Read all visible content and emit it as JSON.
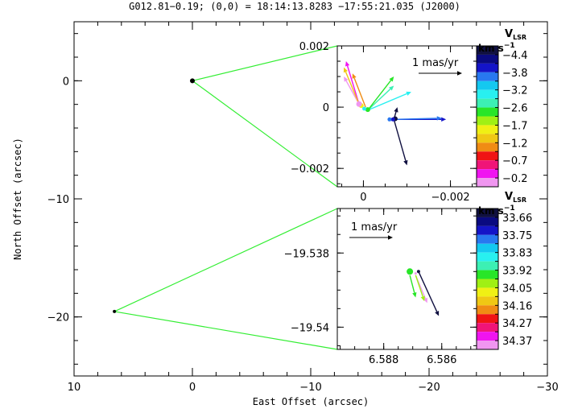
{
  "chart_data": [
    {
      "type": "scatter",
      "role": "main",
      "title": "G012.81−0.19;  (0,0) = 18:14:13.8283  −17:55:21.035 (J2000)",
      "xlabel": "East Offset (arcsec)",
      "ylabel": "North Offset (arcsec)",
      "xlim": [
        10,
        -30
      ],
      "ylim": [
        -25,
        5
      ],
      "xticks": [
        10,
        0,
        -10,
        -20,
        -30
      ],
      "xtick_labels": [
        "10",
        "0",
        "−10",
        "−20",
        "−30"
      ],
      "yticks": [
        0,
        -10,
        -20
      ],
      "ytick_labels": [
        "0",
        "−10",
        "−20"
      ],
      "points": [
        {
          "x": 0.0,
          "y": 0.0
        },
        {
          "x": 6.59,
          "y": -19.54
        }
      ]
    },
    {
      "type": "scatter",
      "role": "inset",
      "xlim": [
        0.0006,
        -0.0026
      ],
      "ylim": [
        -0.0026,
        0.002
      ],
      "xticks": [
        0,
        -0.002
      ],
      "xtick_labels": [
        "0",
        "−0.002"
      ],
      "yticks": [
        0.002,
        0,
        -0.002
      ],
      "ytick_labels": [
        "0.002",
        "0",
        "−0.002"
      ],
      "scale_bar_label": "1 mas/yr",
      "colorbar": {
        "title": "V",
        "title_sub": "LSR",
        "unit": "km s",
        "unit_sup": "−1",
        "labels": [
          "−4.4",
          "−3.8",
          "−3.2",
          "−2.6",
          "−1.7",
          "−1.2",
          "−0.7",
          "−0.2"
        ],
        "colors": [
          "#101040",
          "#0a0a80",
          "#1414c8",
          "#2878f0",
          "#14c8f0",
          "#28f0f0",
          "#3cf0b4",
          "#28e628",
          "#a0f014",
          "#f0f014",
          "#f0c814",
          "#f08c14",
          "#f01414",
          "#f01478",
          "#f014f0",
          "#f096f0"
        ]
      },
      "spots": [
        {
          "x": -0.00073,
          "y": -0.00038,
          "size": 3.0,
          "color": "#101040"
        },
        {
          "x": -0.00068,
          "y": -0.0004,
          "size": 2.5,
          "color": "#1414c8"
        },
        {
          "x": -0.0006,
          "y": -0.0004,
          "size": 2.5,
          "color": "#2878f0"
        },
        {
          "x": 5e-05,
          "y": 5e-05,
          "size": 3.0,
          "color": "#f0f014"
        },
        {
          "x": 0.0001,
          "y": 0.0001,
          "size": 3.5,
          "color": "#f096f0"
        },
        {
          "x": -0.0001,
          "y": -8e-05,
          "size": 3.0,
          "color": "#28e628"
        },
        {
          "x": -2e-05,
          "y": -5e-05,
          "size": 2.5,
          "color": "#28f0f0"
        }
      ],
      "vectors": [
        {
          "x0": -0.0007,
          "y0": -0.0004,
          "dx": -0.0012,
          "dy": 0.0,
          "color": "#1414c8"
        },
        {
          "x0": -0.0007,
          "y0": -0.0004,
          "dx": -0.0011,
          "dy": 4e-05,
          "color": "#2878f0"
        },
        {
          "x0": -0.0007,
          "y0": -0.0004,
          "dx": -0.0003,
          "dy": -0.0015,
          "color": "#101040"
        },
        {
          "x0": -0.0007,
          "y0": -0.0004,
          "dx": -8e-05,
          "dy": 0.0004,
          "color": "#101040"
        },
        {
          "x0": -0.0001,
          "y0": -0.0001,
          "dx": -0.001,
          "dy": 0.0006,
          "color": "#28f0f0"
        },
        {
          "x0": -0.0001,
          "y0": -0.0001,
          "dx": -0.0006,
          "dy": 0.0008,
          "color": "#3cf0b4"
        },
        {
          "x0": -0.0001,
          "y0": -0.0001,
          "dx": -0.0006,
          "dy": 0.0011,
          "color": "#28e628"
        },
        {
          "x0": 0.0001,
          "y0": 0.0001,
          "dx": 0.0003,
          "dy": 0.0014,
          "color": "#f014f0"
        },
        {
          "x0": 0.0001,
          "y0": 0.0001,
          "dx": 0.00035,
          "dy": 0.0009,
          "color": "#f096f0"
        },
        {
          "x0": 0.0001,
          "y0": 0.0001,
          "dx": 0.00035,
          "dy": 0.0012,
          "color": "#f0c814"
        },
        {
          "x0": -5e-05,
          "y0": 0.0,
          "dx": 0.0003,
          "dy": 0.0011,
          "color": "#f08c14"
        }
      ]
    },
    {
      "type": "scatter",
      "role": "inset",
      "xlim": [
        6.5896,
        6.5848
      ],
      "ylim": [
        -19.5406,
        -19.5368
      ],
      "xticks": [
        6.588,
        6.586
      ],
      "xtick_labels": [
        "6.588",
        "6.586"
      ],
      "yticks": [
        -19.538,
        -19.54
      ],
      "ytick_labels": [
        "−19.538",
        "−19.54"
      ],
      "scale_bar_label": "1 mas/yr",
      "colorbar": {
        "title": "V",
        "title_sub": "LSR",
        "unit": "km s",
        "unit_sup": "−1",
        "labels": [
          "33.66",
          "33.75",
          "33.83",
          "33.92",
          "34.05",
          "34.16",
          "34.27",
          "34.37"
        ],
        "colors": [
          "#101040",
          "#0a0a80",
          "#1414c8",
          "#2878f0",
          "#14c8f0",
          "#28f0f0",
          "#3cf0b4",
          "#28e628",
          "#a0f014",
          "#f0f014",
          "#f0c814",
          "#f08c14",
          "#f01414",
          "#f01478",
          "#f014f0",
          "#f096f0"
        ]
      },
      "spots": [
        {
          "x": 6.5871,
          "y": -19.5385,
          "size": 4.0,
          "color": "#28e628"
        },
        {
          "x": 6.5868,
          "y": -19.5385,
          "size": 2.0,
          "color": "#101040"
        },
        {
          "x": 6.5869,
          "y": -19.53855,
          "size": 1.5,
          "color": "#f096f0"
        }
      ],
      "vectors": [
        {
          "x0": 6.5868,
          "y0": -19.5385,
          "dx": -0.0007,
          "dy": -0.0012,
          "color": "#101040"
        },
        {
          "x0": 6.5869,
          "y0": -19.5386,
          "dx": -0.0004,
          "dy": -0.00075,
          "color": "#f096f0"
        },
        {
          "x0": 6.5869,
          "y0": -19.5386,
          "dx": -0.0003,
          "dy": -0.0007,
          "color": "#a0f014"
        },
        {
          "x0": 6.5871,
          "y0": -19.5386,
          "dx": -0.0002,
          "dy": -0.0006,
          "color": "#28e628"
        }
      ]
    }
  ]
}
